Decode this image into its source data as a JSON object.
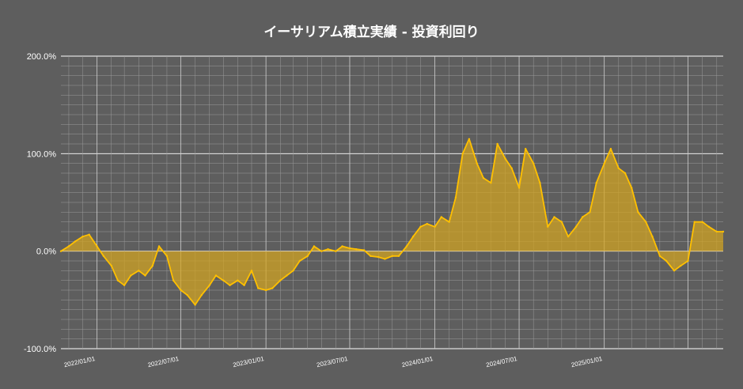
{
  "chart_data": {
    "type": "area",
    "title": "イーサリアム積立実績 - 投資利回り",
    "xlabel": "",
    "ylabel": "",
    "y_tick_labels": [
      "200.0%",
      "100.0%",
      "0.0%",
      "-100.0%"
    ],
    "ylim": [
      -100,
      200
    ],
    "x_tick_labels": [
      "2022/01/01",
      "2022/07/01",
      "2023/01/01",
      "2023/07/01",
      "2024/01/01",
      "2024/07/01",
      "2025/01/01"
    ],
    "xlim": [
      "2021-10-15",
      "2025-09-15"
    ],
    "grid": true,
    "colors": {
      "background": "#5e5e5e",
      "line": "#ffc000",
      "fill": "#d4a520",
      "grid": "#9a9a9a"
    },
    "series": [
      {
        "x": [
          "2021-10-15",
          "2021-11-01",
          "2021-11-15",
          "2021-12-01",
          "2021-12-15",
          "2022-01-01",
          "2022-01-15",
          "2022-02-01",
          "2022-02-15",
          "2022-03-01",
          "2022-03-15",
          "2022-04-01",
          "2022-04-15",
          "2022-05-01",
          "2022-05-15",
          "2022-06-01",
          "2022-06-15",
          "2022-07-01",
          "2022-07-15",
          "2022-08-01",
          "2022-08-15",
          "2022-09-01",
          "2022-09-15",
          "2022-10-01",
          "2022-10-15",
          "2022-11-01",
          "2022-11-15",
          "2022-12-01",
          "2022-12-15",
          "2023-01-01",
          "2023-01-15",
          "2023-02-01",
          "2023-02-15",
          "2023-03-01",
          "2023-03-15",
          "2023-04-01",
          "2023-04-15",
          "2023-05-01",
          "2023-05-15",
          "2023-06-01",
          "2023-06-15",
          "2023-07-01",
          "2023-07-15",
          "2023-08-01",
          "2023-08-15",
          "2023-09-01",
          "2023-09-15",
          "2023-10-01",
          "2023-10-15",
          "2023-11-01",
          "2023-11-15",
          "2023-12-01",
          "2023-12-15",
          "2024-01-01",
          "2024-01-15",
          "2024-02-01",
          "2024-02-15",
          "2024-03-01",
          "2024-03-15",
          "2024-04-01",
          "2024-04-15",
          "2024-05-01",
          "2024-05-15",
          "2024-06-01",
          "2024-06-15",
          "2024-07-01",
          "2024-07-15",
          "2024-08-01",
          "2024-08-15",
          "2024-09-01",
          "2024-09-15",
          "2024-10-01",
          "2024-10-15",
          "2024-11-01",
          "2024-11-15",
          "2024-12-01",
          "2024-12-15",
          "2025-01-01",
          "2025-01-15",
          "2025-02-01",
          "2025-02-15",
          "2025-03-01",
          "2025-03-15",
          "2025-04-01",
          "2025-04-15",
          "2025-05-01",
          "2025-05-15",
          "2025-06-01",
          "2025-06-15",
          "2025-07-01",
          "2025-07-15",
          "2025-08-01",
          "2025-08-15",
          "2025-09-01",
          "2025-09-15"
        ],
        "y": [
          0,
          5,
          10,
          15,
          17,
          5,
          -5,
          -15,
          -30,
          -35,
          -25,
          -20,
          -25,
          -15,
          5,
          -5,
          -30,
          -40,
          -45,
          -55,
          -45,
          -35,
          -25,
          -30,
          -35,
          -30,
          -35,
          -20,
          -38,
          -40,
          -38,
          -30,
          -25,
          -20,
          -10,
          -5,
          5,
          0,
          2,
          0,
          5,
          3,
          2,
          1,
          -5,
          -6,
          -8,
          -5,
          -5,
          5,
          15,
          25,
          28,
          25,
          35,
          30,
          55,
          100,
          115,
          90,
          75,
          70,
          110,
          95,
          85,
          65,
          105,
          90,
          70,
          25,
          35,
          30,
          15,
          25,
          35,
          40,
          70,
          90,
          105,
          85,
          80,
          65,
          40,
          30,
          15,
          -5,
          -10,
          -20,
          -15,
          -10,
          30,
          30,
          25,
          20,
          20
        ]
      }
    ]
  }
}
